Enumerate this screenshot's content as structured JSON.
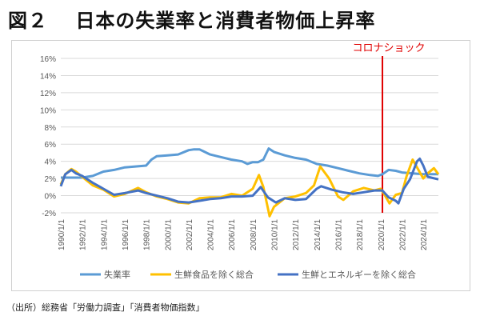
{
  "title": "図２　 日本の失業率と消費者物価上昇率",
  "source": "（出所）総務省「労働力調査」「消費者物価指数」",
  "chart_data": {
    "type": "line",
    "title": "",
    "ylim": [
      -2,
      16
    ],
    "yticks": [
      -2,
      0,
      2,
      4,
      6,
      8,
      10,
      12,
      14,
      16
    ],
    "ytick_labels": [
      "-2%",
      "0%",
      "2%",
      "4%",
      "6%",
      "8%",
      "10%",
      "12%",
      "14%",
      "16%"
    ],
    "xlim": [
      "1990-01",
      "2025-06"
    ],
    "xtick_labels": [
      "1990/1/1",
      "1992/1/1",
      "1994/1/1",
      "1996/1/1",
      "1998/1/1",
      "2000/1/1",
      "2002/1/1",
      "2004/1/1",
      "2006/1/1",
      "2008/1/1",
      "2010/1/1",
      "2012/1/1",
      "2014/1/1",
      "2016/1/1",
      "2018/1/1",
      "2020/1/1",
      "2022/1/1",
      "2024/1/1"
    ],
    "grid": true,
    "legend": "bottom",
    "annotation": {
      "label": "コロナショック",
      "x": "2020-03",
      "color": "#e00000"
    },
    "series": [
      {
        "name": "失業率",
        "color": "#5b9bd5",
        "x": [
          "1990-01",
          "1991-01",
          "1992-01",
          "1993-01",
          "1994-01",
          "1995-01",
          "1996-01",
          "1997-01",
          "1998-01",
          "1998-07",
          "1999-01",
          "2000-01",
          "2001-01",
          "2002-01",
          "2002-07",
          "2003-01",
          "2004-01",
          "2005-01",
          "2006-01",
          "2007-01",
          "2007-07",
          "2008-01",
          "2008-07",
          "2009-01",
          "2009-07",
          "2010-01",
          "2011-01",
          "2012-01",
          "2013-01",
          "2014-01",
          "2015-01",
          "2016-01",
          "2017-01",
          "2018-01",
          "2019-01",
          "2019-10",
          "2020-03",
          "2020-10",
          "2021-06",
          "2022-01",
          "2023-01",
          "2024-01",
          "2025-06"
        ],
        "y": [
          2.1,
          2.1,
          2.1,
          2.3,
          2.8,
          3.0,
          3.3,
          3.4,
          3.5,
          4.2,
          4.6,
          4.7,
          4.8,
          5.3,
          5.4,
          5.4,
          4.8,
          4.5,
          4.2,
          4.0,
          3.7,
          3.9,
          3.9,
          4.2,
          5.5,
          5.1,
          4.7,
          4.4,
          4.2,
          3.7,
          3.5,
          3.2,
          2.9,
          2.6,
          2.4,
          2.3,
          2.5,
          3.0,
          2.9,
          2.7,
          2.6,
          2.5,
          2.5
        ]
      },
      {
        "name": "生鮮食品を除く総合",
        "color": "#ffc000",
        "x": [
          "1990-01",
          "1990-06",
          "1991-01",
          "1991-06",
          "1992-01",
          "1993-01",
          "1994-01",
          "1995-01",
          "1996-01",
          "1997-04",
          "1998-01",
          "1999-01",
          "2000-01",
          "2001-01",
          "2002-01",
          "2003-01",
          "2004-01",
          "2005-01",
          "2006-01",
          "2007-01",
          "2008-01",
          "2008-08",
          "2009-01",
          "2009-08",
          "2010-01",
          "2011-01",
          "2012-01",
          "2013-01",
          "2013-10",
          "2014-05",
          "2015-03",
          "2016-01",
          "2016-07",
          "2017-06",
          "2018-06",
          "2019-06",
          "2020-01",
          "2020-06",
          "2020-11",
          "2021-06",
          "2022-01",
          "2022-06",
          "2023-01",
          "2023-06",
          "2024-01",
          "2024-06",
          "2025-01",
          "2025-06"
        ],
        "y": [
          1.3,
          2.5,
          3.1,
          2.8,
          2.2,
          1.2,
          0.7,
          -0.1,
          0.2,
          0.9,
          0.4,
          -0.1,
          -0.4,
          -0.8,
          -0.9,
          -0.3,
          -0.2,
          -0.2,
          0.2,
          0.0,
          0.8,
          2.4,
          1.0,
          -2.4,
          -1.3,
          -0.3,
          -0.1,
          0.3,
          1.2,
          3.4,
          2.0,
          -0.1,
          -0.5,
          0.5,
          0.9,
          0.6,
          0.8,
          0.0,
          -0.9,
          0.1,
          0.3,
          2.2,
          4.2,
          3.3,
          2.0,
          2.6,
          3.2,
          2.5
        ]
      },
      {
        "name": "生鮮とエネルギーを除く総合",
        "color": "#4472c4",
        "x": [
          "1990-01",
          "1990-06",
          "1991-01",
          "1991-06",
          "1992-01",
          "1993-01",
          "1994-01",
          "1995-01",
          "1996-01",
          "1997-04",
          "1998-01",
          "1999-01",
          "2000-01",
          "2001-01",
          "2002-01",
          "2003-01",
          "2004-01",
          "2005-01",
          "2006-01",
          "2007-01",
          "2008-01",
          "2008-10",
          "2009-06",
          "2010-03",
          "2011-01",
          "2012-01",
          "2013-01",
          "2014-01",
          "2014-06",
          "2015-06",
          "2016-06",
          "2017-06",
          "2018-06",
          "2019-06",
          "2020-03",
          "2020-10",
          "2021-06",
          "2021-09",
          "2022-03",
          "2022-10",
          "2023-06",
          "2023-09",
          "2024-01",
          "2024-06",
          "2025-06"
        ],
        "y": [
          1.1,
          2.5,
          3.0,
          2.6,
          2.3,
          1.5,
          0.8,
          0.1,
          0.3,
          0.6,
          0.3,
          0.0,
          -0.3,
          -0.7,
          -0.8,
          -0.6,
          -0.4,
          -0.3,
          -0.1,
          -0.1,
          0.0,
          1.0,
          -0.2,
          -0.8,
          -0.3,
          -0.5,
          -0.4,
          0.8,
          1.1,
          0.7,
          0.4,
          0.2,
          0.4,
          0.6,
          0.6,
          -0.2,
          -0.6,
          -0.9,
          0.8,
          1.9,
          4.0,
          4.3,
          3.5,
          2.2,
          1.9
        ]
      }
    ]
  }
}
